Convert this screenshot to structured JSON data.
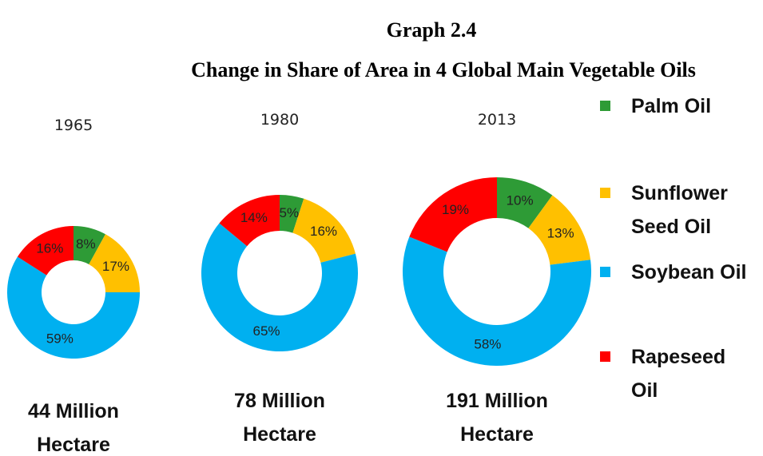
{
  "chart_data": {
    "type": "donut",
    "title": "Graph 2.4",
    "subtitle": "Change in Share of Area in 4 Global Main Vegetable Oils",
    "categories": [
      "Palm Oil",
      "Sunflower Seed Oil",
      "Soybean Oil",
      "Rapeseed Oil"
    ],
    "colors": [
      "#2e9b36",
      "#ffc000",
      "#00b0f0",
      "#ff0000"
    ],
    "legend": "right",
    "series": [
      {
        "name": "1965",
        "values": [
          8,
          17,
          59,
          16
        ],
        "value_labels": [
          "8%",
          "17%",
          "59%",
          "16%"
        ],
        "total": "44 Million Hectare"
      },
      {
        "name": "1980",
        "values": [
          5,
          16,
          65,
          14
        ],
        "value_labels": [
          "5%",
          "16%",
          "65%",
          "14%"
        ],
        "total": "78 Million Hectare"
      },
      {
        "name": "2013",
        "values": [
          10,
          13,
          58,
          19
        ],
        "value_labels": [
          "10%",
          "13%",
          "58%",
          "19%"
        ],
        "total": "191 Million Hectare"
      }
    ]
  }
}
